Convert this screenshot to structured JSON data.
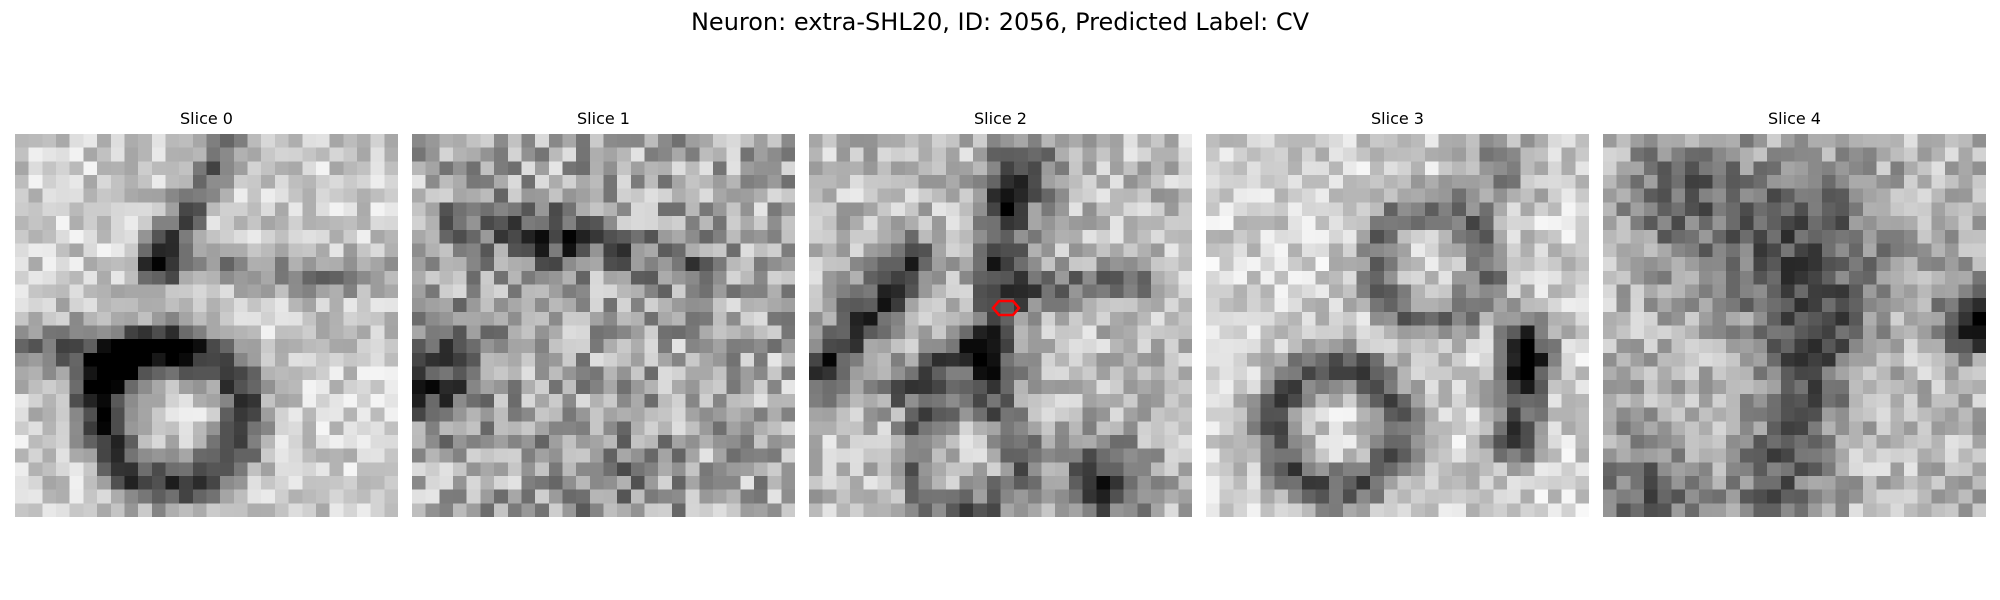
{
  "figure": {
    "title": "Neuron: extra-SHL20, ID: 2056, Predicted Label: CV"
  },
  "panels": [
    {
      "title": "Slice 0"
    },
    {
      "title": "Slice 1"
    },
    {
      "title": "Slice 2"
    },
    {
      "title": "Slice 3"
    },
    {
      "title": "Slice 4"
    }
  ],
  "marker": {
    "slice_index": 2,
    "shape": "hexagon-outline-icon",
    "color": "#ff0000"
  },
  "colormap": "gray"
}
